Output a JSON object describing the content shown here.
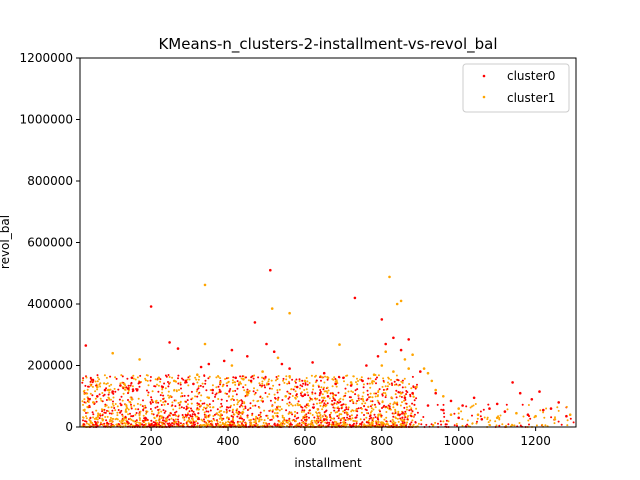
{
  "chart_data": {
    "type": "scatter",
    "title": "KMeans-n_clusters-2-installment-vs-revol_bal",
    "xlabel": "installment",
    "ylabel": "revol_bal",
    "xlim": [
      15,
      1305
    ],
    "ylim": [
      0,
      1200000
    ],
    "xticks": [
      200,
      400,
      600,
      800,
      1000,
      1200
    ],
    "yticks": [
      0,
      200000,
      400000,
      600000,
      800000,
      1000000,
      1200000
    ],
    "grid": false,
    "legend_position": "top-right",
    "series": [
      {
        "name": "cluster0",
        "color": "#ff0000",
        "points": [
          [
            30,
            265000
          ],
          [
            200,
            392000
          ],
          [
            248,
            275000
          ],
          [
            270,
            255000
          ],
          [
            330,
            195000
          ],
          [
            350,
            205000
          ],
          [
            390,
            215000
          ],
          [
            410,
            250000
          ],
          [
            450,
            230000
          ],
          [
            470,
            340000
          ],
          [
            500,
            270000
          ],
          [
            510,
            510000
          ],
          [
            520,
            245000
          ],
          [
            540,
            205000
          ],
          [
            560,
            190000
          ],
          [
            620,
            210000
          ],
          [
            650,
            175000
          ],
          [
            700,
            160000
          ],
          [
            730,
            420000
          ],
          [
            760,
            200000
          ],
          [
            790,
            230000
          ],
          [
            800,
            350000
          ],
          [
            810,
            270000
          ],
          [
            830,
            290000
          ],
          [
            850,
            250000
          ],
          [
            870,
            285000
          ],
          [
            900,
            180000
          ],
          [
            150,
            160000
          ],
          [
            170,
            145000
          ],
          [
            230,
            130000
          ],
          [
            290,
            150000
          ],
          [
            310,
            140000
          ],
          [
            420,
            160000
          ],
          [
            460,
            150000
          ],
          [
            580,
            130000
          ],
          [
            680,
            140000
          ],
          [
            720,
            135000
          ],
          [
            750,
            150000
          ],
          [
            940,
            110000
          ],
          [
            980,
            85000
          ],
          [
            1010,
            70000
          ],
          [
            1040,
            95000
          ],
          [
            1080,
            60000
          ],
          [
            1100,
            75000
          ],
          [
            1140,
            145000
          ],
          [
            1160,
            110000
          ],
          [
            1190,
            90000
          ],
          [
            1210,
            115000
          ],
          [
            1240,
            60000
          ],
          [
            1260,
            80000
          ],
          [
            100,
            115000
          ],
          [
            80,
            120000
          ],
          [
            60,
            100000
          ],
          [
            120,
            135000
          ],
          [
            140,
            125000
          ],
          [
            360,
            120000
          ],
          [
            380,
            115000
          ],
          [
            600,
            105000
          ],
          [
            640,
            110000
          ],
          [
            660,
            100000
          ],
          [
            860,
            95000
          ],
          [
            880,
            110000
          ],
          [
            920,
            70000
          ],
          [
            960,
            55000
          ],
          [
            1120,
            50000
          ],
          [
            1180,
            40000
          ],
          [
            1220,
            55000
          ],
          [
            1280,
            35000
          ],
          [
            1000,
            30000
          ],
          [
            1060,
            25000
          ]
        ]
      },
      {
        "name": "cluster1",
        "color": "#ffa500",
        "points": [
          [
            340,
            462000
          ],
          [
            515,
            385000
          ],
          [
            560,
            370000
          ],
          [
            820,
            488000
          ],
          [
            840,
            400000
          ],
          [
            850,
            410000
          ],
          [
            100,
            240000
          ],
          [
            170,
            220000
          ],
          [
            340,
            270000
          ],
          [
            410,
            200000
          ],
          [
            530,
            225000
          ],
          [
            690,
            268000
          ],
          [
            810,
            245000
          ],
          [
            860,
            220000
          ],
          [
            880,
            235000
          ],
          [
            910,
            190000
          ],
          [
            930,
            150000
          ],
          [
            60,
            130000
          ],
          [
            90,
            120000
          ],
          [
            130,
            140000
          ],
          [
            220,
            160000
          ],
          [
            260,
            150000
          ],
          [
            320,
            170000
          ],
          [
            380,
            145000
          ],
          [
            440,
            155000
          ],
          [
            490,
            180000
          ],
          [
            560,
            165000
          ],
          [
            600,
            150000
          ],
          [
            660,
            160000
          ],
          [
            720,
            145000
          ],
          [
            780,
            170000
          ],
          [
            800,
            200000
          ],
          [
            830,
            180000
          ],
          [
            870,
            190000
          ],
          [
            940,
            120000
          ],
          [
            960,
            100000
          ],
          [
            1000,
            60000
          ],
          [
            1050,
            40000
          ],
          [
            1100,
            30000
          ],
          [
            1150,
            45000
          ],
          [
            1200,
            35000
          ],
          [
            1250,
            25000
          ],
          [
            1290,
            40000
          ],
          [
            50,
            80000
          ],
          [
            150,
            90000
          ],
          [
            250,
            100000
          ],
          [
            350,
            95000
          ],
          [
            450,
            105000
          ],
          [
            550,
            100000
          ],
          [
            650,
            95000
          ],
          [
            750,
            90000
          ],
          [
            850,
            110000
          ],
          [
            890,
            130000
          ],
          [
            920,
            175000
          ],
          [
            980,
            40000
          ]
        ]
      }
    ]
  }
}
